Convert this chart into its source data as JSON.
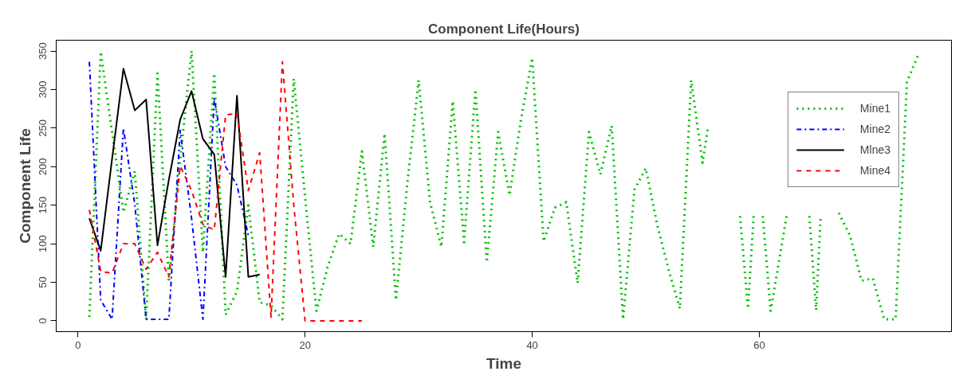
{
  "chart_data": {
    "type": "line",
    "title": "Component Life(Hours)",
    "xlabel": "Time",
    "ylabel": "Component Life",
    "xlim": [
      -1.92,
      76.92
    ],
    "ylim": [
      -14,
      364
    ],
    "xticks": [
      0,
      20,
      40,
      60
    ],
    "yticks": [
      0,
      50,
      100,
      150,
      200,
      250,
      300,
      350
    ],
    "grid": false,
    "legend": "top right",
    "series": [
      {
        "name": "Mine1",
        "color": "#00c000",
        "line_style": "dotted",
        "x": [
          1,
          2,
          3,
          4,
          5,
          6,
          7,
          8,
          9,
          10,
          11,
          12,
          13,
          14,
          15,
          16,
          17,
          18,
          19,
          20,
          21,
          22,
          23,
          24,
          25,
          26,
          27,
          28,
          29,
          30,
          31,
          32,
          33,
          34,
          35,
          36,
          37,
          38,
          39,
          40,
          41,
          42,
          43,
          44,
          45,
          46,
          47,
          48,
          49,
          50,
          51,
          52,
          53,
          54,
          55,
          55.5,
          57,
          58.3,
          59,
          59.5,
          60,
          60.3,
          61,
          62.4,
          63.5,
          64.4,
          65,
          65.4,
          66,
          67,
          68,
          69,
          70,
          71,
          72,
          73,
          74
        ],
        "values": [
          5,
          349,
          245,
          141,
          194,
          2,
          321,
          50,
          210,
          350,
          89,
          321,
          8,
          38,
          150,
          24,
          20,
          2,
          314,
          160,
          13,
          71,
          113,
          100,
          220,
          96,
          243,
          27,
          178,
          312,
          154,
          96,
          285,
          102,
          300,
          76,
          245,
          163,
          260,
          341,
          103,
          147,
          154,
          49,
          245,
          190,
          253,
          2,
          170,
          198,
          125,
          67,
          16,
          312,
          205,
          253,
          null,
          136,
          16,
          136,
          null,
          136,
          13,
          136,
          null,
          136,
          14,
          136,
          null,
          140,
          110,
          52,
          55,
          2,
          2,
          310,
          345
        ]
      },
      {
        "name": "Mine2",
        "color": "#0000ff",
        "line_style": "dashdot",
        "x": [
          1,
          2,
          3,
          4,
          5,
          6,
          7,
          8,
          9,
          10,
          11,
          12,
          13,
          14,
          15
        ],
        "values": [
          336,
          27,
          2,
          250,
          151,
          2,
          2,
          2,
          247,
          133,
          2,
          289,
          200,
          176,
          111
        ]
      },
      {
        "name": "Mlne3",
        "color": "#000000",
        "line_style": "solid",
        "x": [
          1,
          2,
          3,
          4,
          5,
          6,
          7,
          8,
          9,
          10,
          11,
          12,
          13,
          14,
          15,
          16
        ],
        "values": [
          133,
          91,
          210,
          327,
          273,
          287,
          98,
          183,
          261,
          298,
          236,
          216,
          57,
          292,
          57,
          60
        ]
      },
      {
        "name": "Mine4",
        "color": "#ff0000",
        "line_style": "dashed",
        "x": [
          1,
          2,
          3,
          4,
          5,
          6,
          7,
          8,
          9,
          10,
          11,
          12,
          13,
          14,
          15,
          16,
          17,
          18,
          19,
          20,
          21,
          22,
          23,
          24,
          25
        ],
        "values": [
          144,
          64,
          62,
          100,
          100,
          67,
          89,
          57,
          201,
          169,
          125,
          118,
          267,
          269,
          169,
          218,
          5,
          336,
          150,
          0,
          0,
          0,
          0,
          0,
          0
        ]
      }
    ]
  }
}
